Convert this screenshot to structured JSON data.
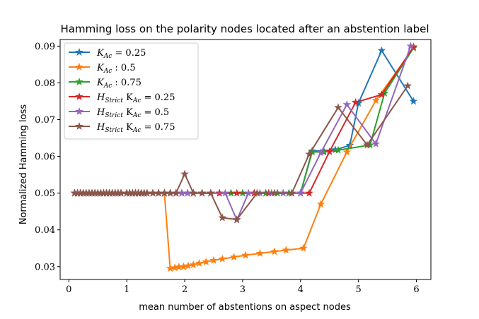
{
  "chart_data": {
    "type": "line",
    "title": "Hamming loss on the polarity nodes located after an abstention label",
    "xlabel": "mean number of abstentions on aspect nodes",
    "ylabel": "Normalized Hamming loss",
    "xlim": [
      -0.15,
      6.25
    ],
    "ylim": [
      0.0265,
      0.0918
    ],
    "xticks": [
      0,
      1,
      2,
      3,
      4,
      5,
      6
    ],
    "xtick_labels": [
      "0",
      "1",
      "2",
      "3",
      "4",
      "5",
      "6"
    ],
    "yticks": [
      0.03,
      0.04,
      0.05,
      0.06,
      0.07,
      0.08,
      0.09
    ],
    "ytick_labels": [
      "0.03",
      "0.04",
      "0.05",
      "0.06",
      "0.07",
      "0.08",
      "0.09"
    ],
    "legend_position": "upper-left",
    "series": [
      {
        "legend": {
          "main": "K",
          "sub": "Ac",
          "rest": " = 0.25"
        },
        "color": "#1f77b4",
        "x": [
          0.1,
          0.15,
          0.2,
          0.25,
          0.3,
          0.35,
          0.4,
          0.45,
          0.5,
          0.55,
          0.6,
          0.65,
          0.7,
          0.75,
          0.8,
          0.85,
          0.9,
          1.0,
          1.05,
          1.1,
          1.15,
          1.2,
          1.25,
          1.3,
          1.35,
          1.45,
          1.55,
          1.65,
          1.75,
          1.85,
          1.95,
          2.05,
          2.15,
          2.3,
          2.45,
          2.6,
          2.8,
          3.0,
          3.2,
          3.4,
          3.6,
          3.8,
          4.0,
          4.2,
          4.4,
          4.6,
          4.85,
          5.0,
          5.4,
          5.95
        ],
        "y": [
          0.05,
          0.05,
          0.05,
          0.05,
          0.05,
          0.05,
          0.05,
          0.05,
          0.05,
          0.05,
          0.05,
          0.05,
          0.05,
          0.05,
          0.05,
          0.05,
          0.05,
          0.05,
          0.05,
          0.05,
          0.05,
          0.05,
          0.05,
          0.05,
          0.05,
          0.05,
          0.05,
          0.05,
          0.05,
          0.05,
          0.05,
          0.05,
          0.05,
          0.05,
          0.05,
          0.05,
          0.05,
          0.05,
          0.05,
          0.05,
          0.05,
          0.05,
          0.05,
          0.0615,
          0.0615,
          0.0618,
          0.063,
          0.0745,
          0.0888,
          0.075
        ]
      },
      {
        "legend": {
          "main": "K",
          "sub": "Ac",
          "rest": " : 0.5"
        },
        "color": "#ff7f0e",
        "x": [
          0.1,
          0.15,
          0.2,
          0.25,
          0.3,
          0.35,
          0.4,
          0.45,
          0.5,
          0.55,
          0.6,
          0.65,
          0.7,
          0.75,
          0.8,
          0.85,
          0.9,
          1.0,
          1.05,
          1.1,
          1.15,
          1.2,
          1.25,
          1.3,
          1.35,
          1.45,
          1.55,
          1.65,
          1.75,
          1.83,
          1.9,
          1.98,
          2.06,
          2.15,
          2.25,
          2.37,
          2.5,
          2.65,
          2.85,
          3.05,
          3.3,
          3.55,
          3.75,
          4.05,
          4.35,
          4.8,
          5.3,
          5.95
        ],
        "y": [
          0.05,
          0.05,
          0.05,
          0.05,
          0.05,
          0.05,
          0.05,
          0.05,
          0.05,
          0.05,
          0.05,
          0.05,
          0.05,
          0.05,
          0.05,
          0.05,
          0.05,
          0.05,
          0.05,
          0.05,
          0.05,
          0.05,
          0.05,
          0.05,
          0.05,
          0.05,
          0.05,
          0.05,
          0.0295,
          0.0297,
          0.0299,
          0.03,
          0.0302,
          0.0305,
          0.0309,
          0.0313,
          0.0317,
          0.0321,
          0.0326,
          0.0331,
          0.0336,
          0.0341,
          0.0345,
          0.035,
          0.047,
          0.0612,
          0.0752,
          0.0895
        ]
      },
      {
        "legend": {
          "main": "K",
          "sub": "Ac",
          "rest": " : 0.75"
        },
        "color": "#2ca02c",
        "x": [
          0.1,
          0.15,
          0.2,
          0.25,
          0.3,
          0.35,
          0.4,
          0.45,
          0.5,
          0.55,
          0.6,
          0.65,
          0.7,
          0.75,
          0.8,
          0.85,
          0.9,
          1.0,
          1.05,
          1.1,
          1.15,
          1.2,
          1.25,
          1.3,
          1.35,
          1.45,
          1.55,
          1.65,
          1.75,
          1.85,
          1.95,
          2.05,
          2.15,
          2.3,
          2.45,
          2.6,
          2.8,
          3.0,
          3.2,
          3.4,
          3.6,
          3.8,
          4.0,
          4.2,
          4.4,
          4.65,
          5.2,
          5.45,
          5.95
        ],
        "y": [
          0.05,
          0.05,
          0.05,
          0.05,
          0.05,
          0.05,
          0.05,
          0.05,
          0.05,
          0.05,
          0.05,
          0.05,
          0.05,
          0.05,
          0.05,
          0.05,
          0.05,
          0.05,
          0.05,
          0.05,
          0.05,
          0.05,
          0.05,
          0.05,
          0.05,
          0.05,
          0.05,
          0.05,
          0.05,
          0.05,
          0.05,
          0.05,
          0.05,
          0.05,
          0.05,
          0.05,
          0.05,
          0.05,
          0.05,
          0.05,
          0.05,
          0.05,
          0.05,
          0.0612,
          0.0612,
          0.0617,
          0.0631,
          0.0772,
          0.0895
        ]
      },
      {
        "legend": {
          "main": "H",
          "sub": "Strict",
          "rest": " K",
          "sub2": "Ac",
          "rest2": " = 0.25"
        },
        "color": "#d62728",
        "x": [
          0.1,
          0.15,
          0.2,
          0.25,
          0.3,
          0.35,
          0.4,
          0.45,
          0.5,
          0.55,
          0.6,
          0.65,
          0.7,
          0.75,
          0.8,
          0.85,
          0.9,
          1.0,
          1.05,
          1.1,
          1.15,
          1.2,
          1.25,
          1.3,
          1.35,
          1.45,
          1.55,
          1.65,
          1.75,
          1.85,
          1.95,
          2.05,
          2.15,
          2.3,
          2.45,
          2.6,
          2.9,
          3.2,
          3.45,
          3.7,
          3.85,
          4.0,
          4.15,
          4.5,
          4.95,
          5.4,
          5.95
        ],
        "y": [
          0.05,
          0.05,
          0.05,
          0.05,
          0.05,
          0.05,
          0.05,
          0.05,
          0.05,
          0.05,
          0.05,
          0.05,
          0.05,
          0.05,
          0.05,
          0.05,
          0.05,
          0.05,
          0.05,
          0.05,
          0.05,
          0.05,
          0.05,
          0.05,
          0.05,
          0.05,
          0.05,
          0.05,
          0.05,
          0.05,
          0.05,
          0.05,
          0.05,
          0.05,
          0.05,
          0.05,
          0.05,
          0.05,
          0.05,
          0.05,
          0.05,
          0.05,
          0.05,
          0.0613,
          0.0747,
          0.0768,
          0.0898
        ]
      },
      {
        "legend": {
          "main": "H",
          "sub": "Strict",
          "rest": " K",
          "sub2": "Ac",
          "rest2": " = 0.5"
        },
        "color": "#9467bd",
        "x": [
          0.1,
          0.15,
          0.2,
          0.25,
          0.3,
          0.35,
          0.4,
          0.45,
          0.5,
          0.55,
          0.6,
          0.65,
          0.7,
          0.75,
          0.8,
          0.85,
          0.9,
          1.0,
          1.05,
          1.1,
          1.15,
          1.2,
          1.25,
          1.3,
          1.35,
          1.45,
          1.55,
          1.65,
          1.75,
          1.85,
          1.95,
          2.05,
          2.15,
          2.3,
          2.45,
          2.7,
          2.9,
          3.1,
          3.3,
          3.5,
          3.7,
          4.0,
          4.35,
          4.8,
          5.3,
          5.9
        ],
        "y": [
          0.05,
          0.05,
          0.05,
          0.05,
          0.05,
          0.05,
          0.05,
          0.05,
          0.05,
          0.05,
          0.05,
          0.05,
          0.05,
          0.05,
          0.05,
          0.05,
          0.05,
          0.05,
          0.05,
          0.05,
          0.05,
          0.05,
          0.05,
          0.05,
          0.05,
          0.05,
          0.05,
          0.05,
          0.05,
          0.05,
          0.05,
          0.05,
          0.05,
          0.05,
          0.05,
          0.05,
          0.0427,
          0.05,
          0.05,
          0.05,
          0.05,
          0.05,
          0.061,
          0.0741,
          0.0634,
          0.09
        ]
      },
      {
        "legend": {
          "main": "H",
          "sub": "Strict",
          "rest": " K",
          "sub2": "Ac",
          "rest2": " = 0.75"
        },
        "color": "#8c564b",
        "x": [
          0.1,
          0.15,
          0.2,
          0.25,
          0.3,
          0.35,
          0.4,
          0.45,
          0.5,
          0.55,
          0.6,
          0.65,
          0.7,
          0.75,
          0.8,
          0.85,
          0.9,
          1.0,
          1.05,
          1.1,
          1.15,
          1.2,
          1.25,
          1.3,
          1.35,
          1.45,
          1.55,
          1.65,
          1.75,
          1.85,
          2.0,
          2.15,
          2.3,
          2.45,
          2.65,
          2.9,
          3.25,
          3.55,
          3.85,
          4.15,
          4.65,
          5.15,
          5.85
        ],
        "y": [
          0.05,
          0.05,
          0.05,
          0.05,
          0.05,
          0.05,
          0.05,
          0.05,
          0.05,
          0.05,
          0.05,
          0.05,
          0.05,
          0.05,
          0.05,
          0.05,
          0.05,
          0.05,
          0.05,
          0.05,
          0.05,
          0.05,
          0.05,
          0.05,
          0.05,
          0.05,
          0.05,
          0.05,
          0.05,
          0.05,
          0.0552,
          0.05,
          0.05,
          0.05,
          0.0433,
          0.0428,
          0.05,
          0.05,
          0.05,
          0.0606,
          0.0733,
          0.0631,
          0.0792
        ]
      }
    ]
  }
}
